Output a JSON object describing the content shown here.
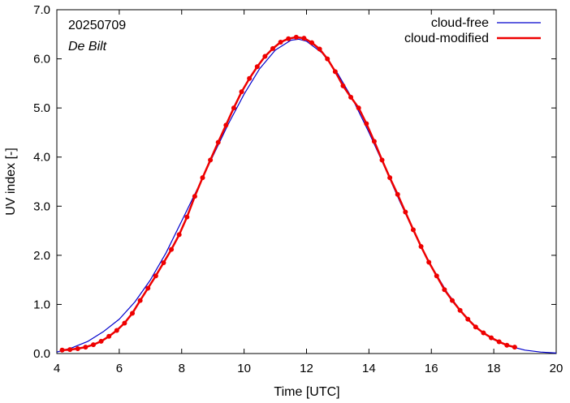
{
  "chart_data": {
    "type": "line",
    "xlabel": "Time  [UTC]",
    "ylabel": "UV index  [-]",
    "xlim": [
      4,
      20
    ],
    "ylim": [
      0,
      7
    ],
    "x_ticks": [
      "4",
      "6",
      "8",
      "10",
      "12",
      "14",
      "16",
      "18",
      "20"
    ],
    "y_ticks": [
      "0.0",
      "1.0",
      "2.0",
      "3.0",
      "4.0",
      "5.0",
      "6.0",
      "7.0"
    ],
    "annotations": {
      "date": "20250709",
      "location": "De Bilt"
    },
    "legend_position": "top-right",
    "grid": false,
    "series": [
      {
        "name": "cloud-free",
        "color": "#0000cc",
        "markers": false,
        "x": [
          4.0,
          4.5,
          5.0,
          5.5,
          6.0,
          6.5,
          7.0,
          7.5,
          8.0,
          8.5,
          9.0,
          9.5,
          10.0,
          10.5,
          11.0,
          11.5,
          11.75,
          12.0,
          12.5,
          13.0,
          13.5,
          14.0,
          14.5,
          15.0,
          15.5,
          16.0,
          16.5,
          17.0,
          17.5,
          18.0,
          18.5,
          19.0,
          19.5,
          20.0
        ],
        "y": [
          0.03,
          0.12,
          0.25,
          0.45,
          0.7,
          1.05,
          1.5,
          2.05,
          2.7,
          3.35,
          4.02,
          4.68,
          5.28,
          5.8,
          6.18,
          6.38,
          6.4,
          6.36,
          6.12,
          5.7,
          5.15,
          4.5,
          3.8,
          3.08,
          2.4,
          1.78,
          1.25,
          0.82,
          0.5,
          0.28,
          0.15,
          0.07,
          0.03,
          0.01
        ]
      },
      {
        "name": "cloud-modified",
        "color": "#ee0000",
        "markers": true,
        "x": [
          4.17,
          4.42,
          4.67,
          4.92,
          5.17,
          5.42,
          5.67,
          5.92,
          6.17,
          6.42,
          6.67,
          6.92,
          7.17,
          7.42,
          7.67,
          7.92,
          8.17,
          8.42,
          8.67,
          8.92,
          9.17,
          9.42,
          9.67,
          9.92,
          10.17,
          10.42,
          10.67,
          10.92,
          11.17,
          11.42,
          11.67,
          11.92,
          12.17,
          12.42,
          12.67,
          12.92,
          13.17,
          13.42,
          13.67,
          13.92,
          14.17,
          14.42,
          14.67,
          14.92,
          15.17,
          15.42,
          15.67,
          15.92,
          16.17,
          16.42,
          16.67,
          16.92,
          17.17,
          17.42,
          17.67,
          17.92,
          18.17,
          18.42,
          18.67
        ],
        "y": [
          0.07,
          0.08,
          0.1,
          0.13,
          0.18,
          0.25,
          0.35,
          0.47,
          0.62,
          0.82,
          1.08,
          1.33,
          1.58,
          1.85,
          2.12,
          2.42,
          2.78,
          3.2,
          3.58,
          3.94,
          4.3,
          4.65,
          5.0,
          5.33,
          5.6,
          5.84,
          6.05,
          6.21,
          6.34,
          6.41,
          6.44,
          6.42,
          6.33,
          6.2,
          6.0,
          5.74,
          5.45,
          5.22,
          5.0,
          4.68,
          4.32,
          3.94,
          3.58,
          3.24,
          2.88,
          2.52,
          2.18,
          1.86,
          1.58,
          1.3,
          1.08,
          0.88,
          0.7,
          0.54,
          0.42,
          0.32,
          0.24,
          0.17,
          0.13
        ]
      }
    ]
  }
}
